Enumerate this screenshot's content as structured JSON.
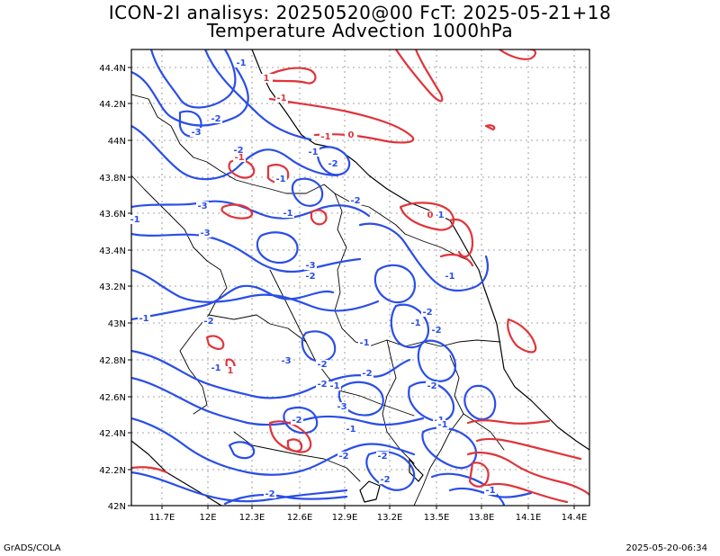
{
  "title_line1": "ICON-2I analisys: 20250520@00 FcT: 2025-05-21+18",
  "title_line2": "Temperature Advection 1000hPa",
  "footer_left": "GrADS/COLA",
  "footer_right": "2025-05-20-06:34",
  "colors": {
    "positive": "#e0343a",
    "negative": "#2a4ee8",
    "coast": "#000000",
    "grid": "#888888"
  },
  "lat_labels": [
    "44.4N",
    "44.2N",
    "44N",
    "43.8N",
    "43.6N",
    "43.4N",
    "43.2N",
    "43N",
    "42.8N",
    "42.6N",
    "42.4N",
    "42.2N",
    "42N"
  ],
  "lon_labels": [
    "11.7E",
    "12E",
    "12.3E",
    "12.6E",
    "12.9E",
    "13.2E",
    "13.5E",
    "13.8E",
    "14.1E",
    "14.4E"
  ],
  "contour_labels": {
    "neg": [
      "-1",
      "-2",
      "-3",
      "-2",
      "-1",
      "-2",
      "-3",
      "-1",
      "-2",
      "-3",
      "-2",
      "-1",
      "-2",
      "-1",
      "-3",
      "-2",
      "-1",
      "-2",
      "-2",
      "-1",
      "-2",
      "-3",
      "-1",
      "-2",
      "-1",
      "-2",
      "-1",
      "-2",
      "-1",
      "-1",
      "-2",
      "-2",
      "-1",
      "-2",
      "-1",
      "-3",
      "-1",
      "-1",
      "-2"
    ],
    "pos": [
      "-1",
      "-1",
      "1",
      "0",
      "0",
      "-1",
      "1"
    ]
  }
}
